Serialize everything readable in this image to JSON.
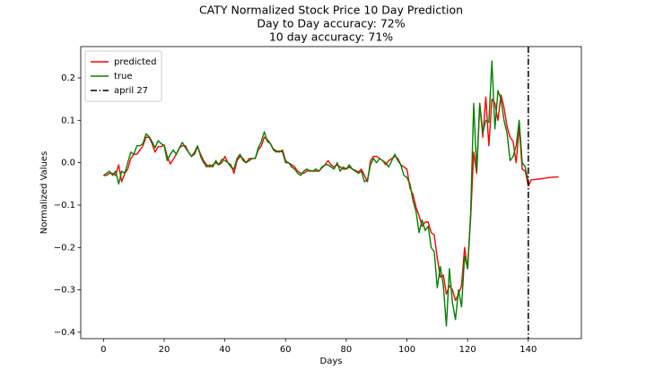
{
  "chart_data": {
    "type": "line",
    "title": "CATY Normalized Stock Price 10 Day Prediction",
    "subtitle": [
      "Day to Day accuracy: 72%",
      "10 day accuracy: 71%"
    ],
    "x_label": "Days",
    "y_label": "Normalized Values",
    "x": [
      0,
      1,
      2,
      3,
      4,
      5,
      6,
      7,
      8,
      9,
      10,
      11,
      12,
      13,
      14,
      15,
      16,
      17,
      18,
      19,
      20,
      21,
      22,
      23,
      24,
      25,
      26,
      27,
      28,
      29,
      30,
      31,
      32,
      33,
      34,
      35,
      36,
      37,
      38,
      39,
      40,
      41,
      42,
      43,
      44,
      45,
      46,
      47,
      48,
      49,
      50,
      51,
      52,
      53,
      54,
      55,
      56,
      57,
      58,
      59,
      60,
      61,
      62,
      63,
      64,
      65,
      66,
      67,
      68,
      69,
      70,
      71,
      72,
      73,
      74,
      75,
      76,
      77,
      78,
      79,
      80,
      81,
      82,
      83,
      84,
      85,
      86,
      87,
      88,
      89,
      90,
      91,
      92,
      93,
      94,
      95,
      96,
      97,
      98,
      99,
      100,
      101,
      102,
      103,
      104,
      105,
      106,
      107,
      108,
      109,
      110,
      111,
      112,
      113,
      114,
      115,
      116,
      117,
      118,
      119,
      120,
      121,
      122,
      123,
      124,
      125,
      126,
      127,
      128,
      129,
      130,
      131,
      132,
      133,
      134,
      135,
      136,
      137,
      138,
      139,
      140,
      141,
      142,
      143,
      144,
      145,
      146,
      147,
      148,
      149,
      150
    ],
    "series": [
      {
        "name": "predicted",
        "color": "#ff0000",
        "values": [
          -0.03,
          -0.03,
          -0.025,
          -0.025,
          -0.03,
          -0.005,
          -0.045,
          -0.025,
          -0.015,
          0.01,
          0.02,
          0.02,
          0.03,
          0.04,
          0.06,
          0.06,
          0.045,
          0.025,
          0.038,
          0.038,
          0.042,
          0.015,
          -0.003,
          0.008,
          0.02,
          0.035,
          0.04,
          0.04,
          0.025,
          0.015,
          0.02,
          0.038,
          0.02,
          0.005,
          -0.005,
          -0.01,
          -0.005,
          0.0,
          -0.005,
          0.0,
          0.015,
          0.0,
          -0.005,
          -0.025,
          0.005,
          0.015,
          0.01,
          0.0,
          0.01,
          0.01,
          0.01,
          0.03,
          0.04,
          0.06,
          0.055,
          0.045,
          0.032,
          0.028,
          0.025,
          0.03,
          0.005,
          0.0,
          -0.005,
          -0.01,
          -0.02,
          -0.025,
          -0.025,
          -0.02,
          -0.018,
          -0.02,
          -0.02,
          -0.02,
          -0.012,
          -0.005,
          0.005,
          -0.005,
          -0.01,
          -0.005,
          -0.01,
          -0.015,
          -0.015,
          -0.01,
          -0.015,
          -0.018,
          -0.022,
          -0.015,
          -0.03,
          -0.045,
          0.005,
          0.015,
          0.015,
          0.01,
          0.005,
          -0.005,
          0.005,
          0.01,
          0.015,
          0.01,
          -0.005,
          -0.01,
          -0.015,
          -0.06,
          -0.075,
          -0.105,
          -0.125,
          -0.15,
          -0.14,
          -0.14,
          -0.165,
          -0.17,
          -0.225,
          -0.27,
          -0.265,
          -0.31,
          -0.29,
          -0.3,
          -0.325,
          -0.31,
          -0.29,
          -0.2,
          -0.25,
          -0.13,
          0.025,
          -0.025,
          0.14,
          0.06,
          0.155,
          0.04,
          0.15,
          0.14,
          0.1,
          0.16,
          0.13,
          0.085,
          0.06,
          0.05,
          0.0,
          0.085,
          -0.015,
          -0.02,
          -0.055,
          -0.04,
          -0.04,
          -0.039,
          -0.038,
          -0.037,
          -0.036,
          -0.035,
          -0.034,
          -0.034,
          -0.033
        ]
      },
      {
        "name": "true",
        "color": "#008000",
        "values": [
          -0.03,
          -0.025,
          -0.02,
          -0.03,
          -0.02,
          -0.05,
          -0.02,
          -0.025,
          0.0,
          0.025,
          0.02,
          0.04,
          0.04,
          0.045,
          0.068,
          0.062,
          0.05,
          0.035,
          0.052,
          0.045,
          0.04,
          0.005,
          0.02,
          0.03,
          0.02,
          0.035,
          0.048,
          0.035,
          0.025,
          0.015,
          0.025,
          0.04,
          0.015,
          0.0,
          -0.01,
          -0.005,
          -0.01,
          0.005,
          -0.005,
          0.008,
          0.005,
          0.0,
          -0.01,
          -0.015,
          0.01,
          0.02,
          0.005,
          0.0,
          0.005,
          0.01,
          0.01,
          0.035,
          0.05,
          0.073,
          0.05,
          0.045,
          0.03,
          0.025,
          0.028,
          0.025,
          0.0,
          0.0,
          -0.01,
          -0.015,
          -0.025,
          -0.03,
          -0.02,
          -0.015,
          -0.02,
          -0.02,
          -0.015,
          -0.02,
          -0.01,
          -0.005,
          -0.005,
          -0.01,
          -0.015,
          0.0,
          -0.02,
          -0.01,
          -0.015,
          -0.005,
          -0.015,
          -0.02,
          -0.025,
          -0.02,
          -0.045,
          -0.04,
          -0.005,
          0.01,
          0.0,
          0.01,
          0.005,
          0.0,
          -0.01,
          0.005,
          0.02,
          0.005,
          -0.005,
          -0.03,
          -0.035,
          -0.05,
          -0.09,
          -0.115,
          -0.165,
          -0.135,
          -0.16,
          -0.15,
          -0.2,
          -0.21,
          -0.295,
          -0.245,
          -0.29,
          -0.385,
          -0.25,
          -0.33,
          -0.37,
          -0.3,
          -0.34,
          -0.22,
          -0.25,
          -0.12,
          0.14,
          -0.02,
          0.14,
          0.07,
          0.1,
          0.095,
          0.24,
          0.08,
          0.17,
          0.15,
          0.1,
          0.07,
          0.005,
          0.015,
          0.04,
          0.1,
          0.0,
          -0.01,
          -0.045,
          null,
          null,
          null,
          null,
          null,
          null,
          null,
          null,
          null,
          null
        ]
      }
    ],
    "vline": {
      "name": "april 27",
      "x": 140,
      "color": "#000000"
    },
    "xlim": [
      -7.5,
      157.5
    ],
    "ylim": [
      -0.415,
      0.274
    ],
    "xticks": [
      0,
      20,
      40,
      60,
      80,
      100,
      120,
      140
    ],
    "yticks": [
      {
        "value": -0.4,
        "label": "−0.4"
      },
      {
        "value": -0.3,
        "label": "−0.3"
      },
      {
        "value": -0.2,
        "label": "−0.2"
      },
      {
        "value": -0.1,
        "label": "−0.1"
      },
      {
        "value": 0,
        "label": "0.0"
      },
      0.1,
      0.2
    ],
    "legend": "upper left",
    "grid": false
  }
}
